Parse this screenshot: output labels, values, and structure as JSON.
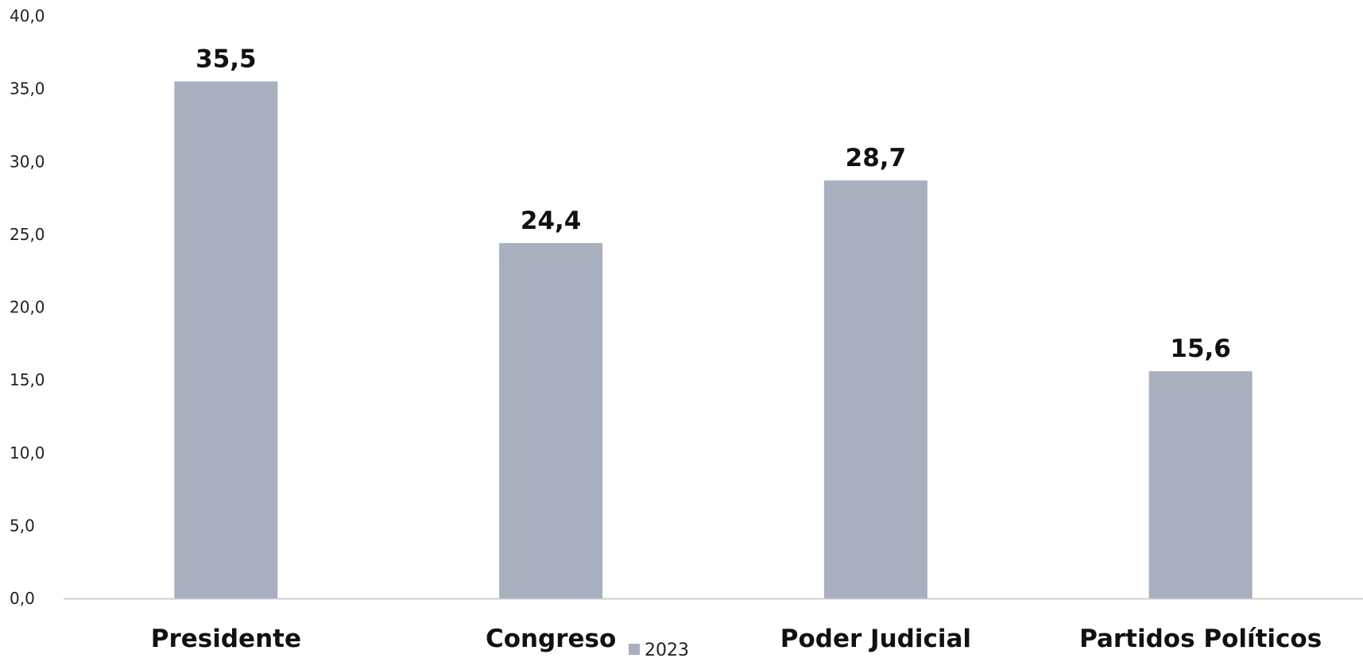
{
  "chart_data": {
    "type": "bar",
    "categories": [
      "Presidente",
      "Congreso",
      "Poder Judicial",
      "Partidos Políticos"
    ],
    "series": [
      {
        "name": "2023",
        "values": [
          35.5,
          24.4,
          28.7,
          15.6
        ],
        "color": "#a8b0c0"
      }
    ],
    "data_labels": [
      "35,5",
      "24,4",
      "28,7",
      "15,6"
    ],
    "ylim": [
      0,
      40
    ],
    "yticks": [
      0,
      5,
      10,
      15,
      20,
      25,
      30,
      35,
      40
    ],
    "ytick_labels": [
      "0,0",
      "5,0",
      "10,0",
      "15,0",
      "20,0",
      "25,0",
      "30,0",
      "35,0",
      "40,0"
    ],
    "grid": false,
    "legend_position": "bottom",
    "axis_color": "#d0d0d0"
  }
}
